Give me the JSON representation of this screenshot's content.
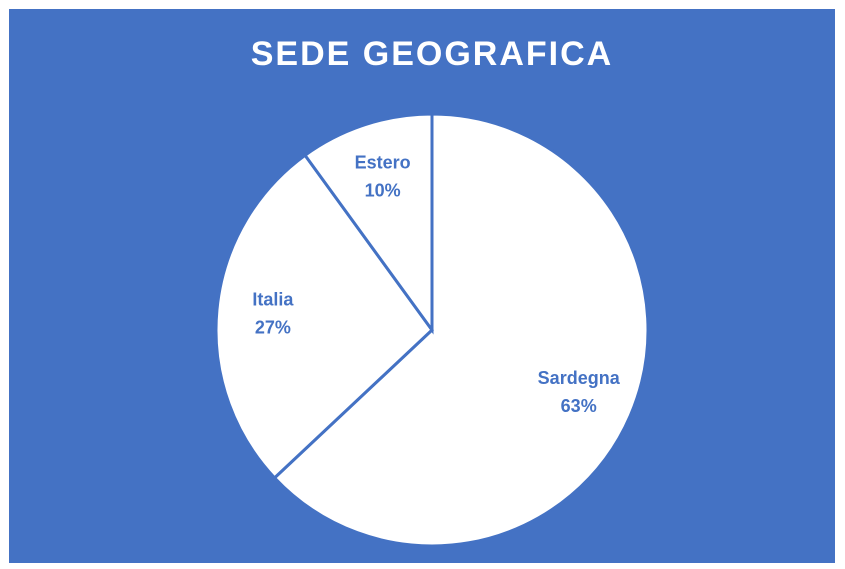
{
  "chart_data": {
    "type": "pie",
    "title": "SEDE GEOGRAFICA",
    "categories": [
      "Sardegna",
      "Italia",
      "Estero"
    ],
    "values": [
      63,
      27,
      10
    ],
    "value_labels": [
      "63%",
      "27%",
      "10%"
    ],
    "color": "#ffffff"
  }
}
